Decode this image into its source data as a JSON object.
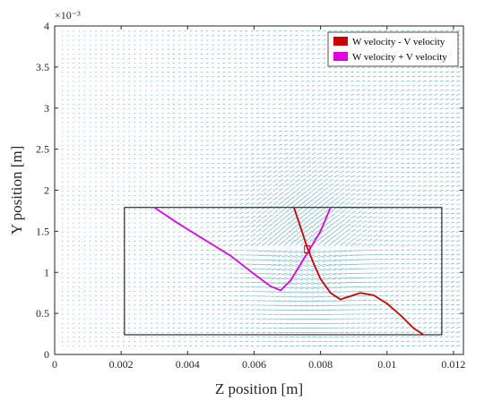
{
  "chart_data": {
    "type": "line",
    "xlabel": "Z position [m]",
    "ylabel": "Y position [m]",
    "x_ticks": [
      "0",
      "0.002",
      "0.004",
      "0.006",
      "0.008",
      "0.01",
      "0.012"
    ],
    "y_ticks": [
      "0",
      "0.5",
      "1",
      "1.5",
      "2",
      "2.5",
      "3",
      "3.5",
      "4"
    ],
    "y_exponent": "×10⁻³",
    "xlim": [
      0,
      0.0123
    ],
    "ylim": [
      0,
      4
    ],
    "grid": false,
    "legend_position": "top-right",
    "colors": {
      "w_minus_v": "#cc0000",
      "w_plus_v": "#e000e0",
      "vectors": "#3a9ab5",
      "box": "#000000"
    },
    "series": [
      {
        "name": "W velocity - V velocity",
        "x": [
          0.0072,
          0.0074,
          0.0076,
          0.0078,
          0.008,
          0.0083,
          0.0086,
          0.0089,
          0.0092,
          0.0096,
          0.01,
          0.0104,
          0.0108,
          0.0111
        ],
        "y": [
          1.79,
          1.55,
          1.3,
          1.1,
          0.92,
          0.75,
          0.67,
          0.71,
          0.75,
          0.72,
          0.62,
          0.48,
          0.32,
          0.24
        ]
      },
      {
        "name": "W velocity + V velocity",
        "x": [
          0.003,
          0.0037,
          0.0045,
          0.0053,
          0.006,
          0.0065,
          0.0068,
          0.0071,
          0.0074,
          0.0077,
          0.008,
          0.0083
        ],
        "y": [
          1.79,
          1.6,
          1.4,
          1.2,
          0.98,
          0.83,
          0.78,
          0.9,
          1.1,
          1.3,
          1.5,
          1.79
        ]
      }
    ],
    "annotations": [
      {
        "shape": "rectangle",
        "x": [
          0.0021,
          0.01165
        ],
        "y": [
          0.24,
          1.79
        ]
      },
      {
        "shape": "intersection-marker",
        "x": 0.0076,
        "y": 1.28
      }
    ]
  }
}
